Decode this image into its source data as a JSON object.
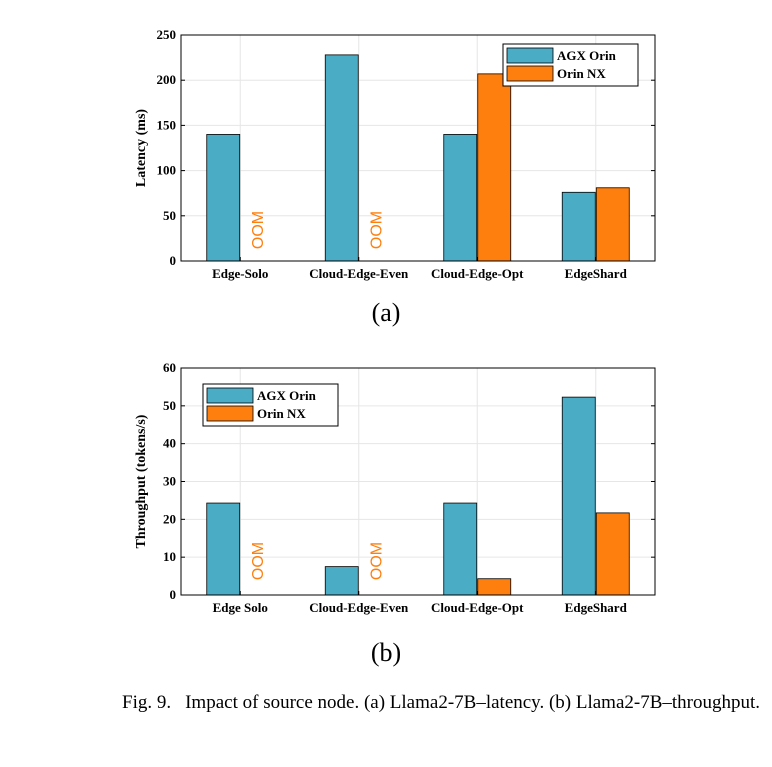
{
  "colors": {
    "agx": "#4bacc6",
    "nx": "#ff7f0e",
    "oom": "#ff7f0e",
    "grid": "#e6e6e6"
  },
  "chart_data": [
    {
      "type": "bar",
      "categories": [
        "Edge-Solo",
        "Cloud-Edge-Even",
        "Cloud-Edge-Opt",
        "EdgeShard"
      ],
      "series": [
        {
          "name": "AGX Orin",
          "values": [
            140,
            228,
            140,
            76
          ]
        },
        {
          "name": "Orin NX",
          "values": [
            null,
            null,
            207,
            81
          ]
        }
      ],
      "oom": [
        {
          "category": "Edge-Solo",
          "series": "Orin NX"
        },
        {
          "category": "Cloud-Edge-Even",
          "series": "Orin NX"
        }
      ],
      "oom_label": "OOM",
      "ylabel": "Latency (ms)",
      "ylim": [
        0,
        250
      ],
      "yticks": [
        0,
        50,
        100,
        150,
        200,
        250
      ],
      "grid": true,
      "legend": "top-right"
    },
    {
      "type": "bar",
      "categories": [
        "Edge Solo",
        "Cloud-Edge-Even",
        "Cloud-Edge-Opt",
        "EdgeShard"
      ],
      "series": [
        {
          "name": "AGX Orin",
          "values": [
            24.3,
            7.5,
            24.3,
            52.3
          ]
        },
        {
          "name": "Orin NX",
          "values": [
            null,
            null,
            4.3,
            21.7
          ]
        }
      ],
      "oom": [
        {
          "category": "Edge Solo",
          "series": "Orin NX"
        },
        {
          "category": "Cloud-Edge-Even",
          "series": "Orin NX"
        }
      ],
      "oom_label": "OOM",
      "ylabel": "Throughput (tokens/s)",
      "ylim": [
        0,
        60
      ],
      "yticks": [
        0,
        10,
        20,
        30,
        40,
        50,
        60
      ],
      "grid": true,
      "legend": "top-left"
    }
  ],
  "subfigure_labels": [
    "(a)",
    "(b)"
  ],
  "caption": {
    "fig": "Fig. 9.",
    "text": "Impact of source node. (a) Llama2-7B–latency. (b) Llama2-7B–throughput."
  }
}
